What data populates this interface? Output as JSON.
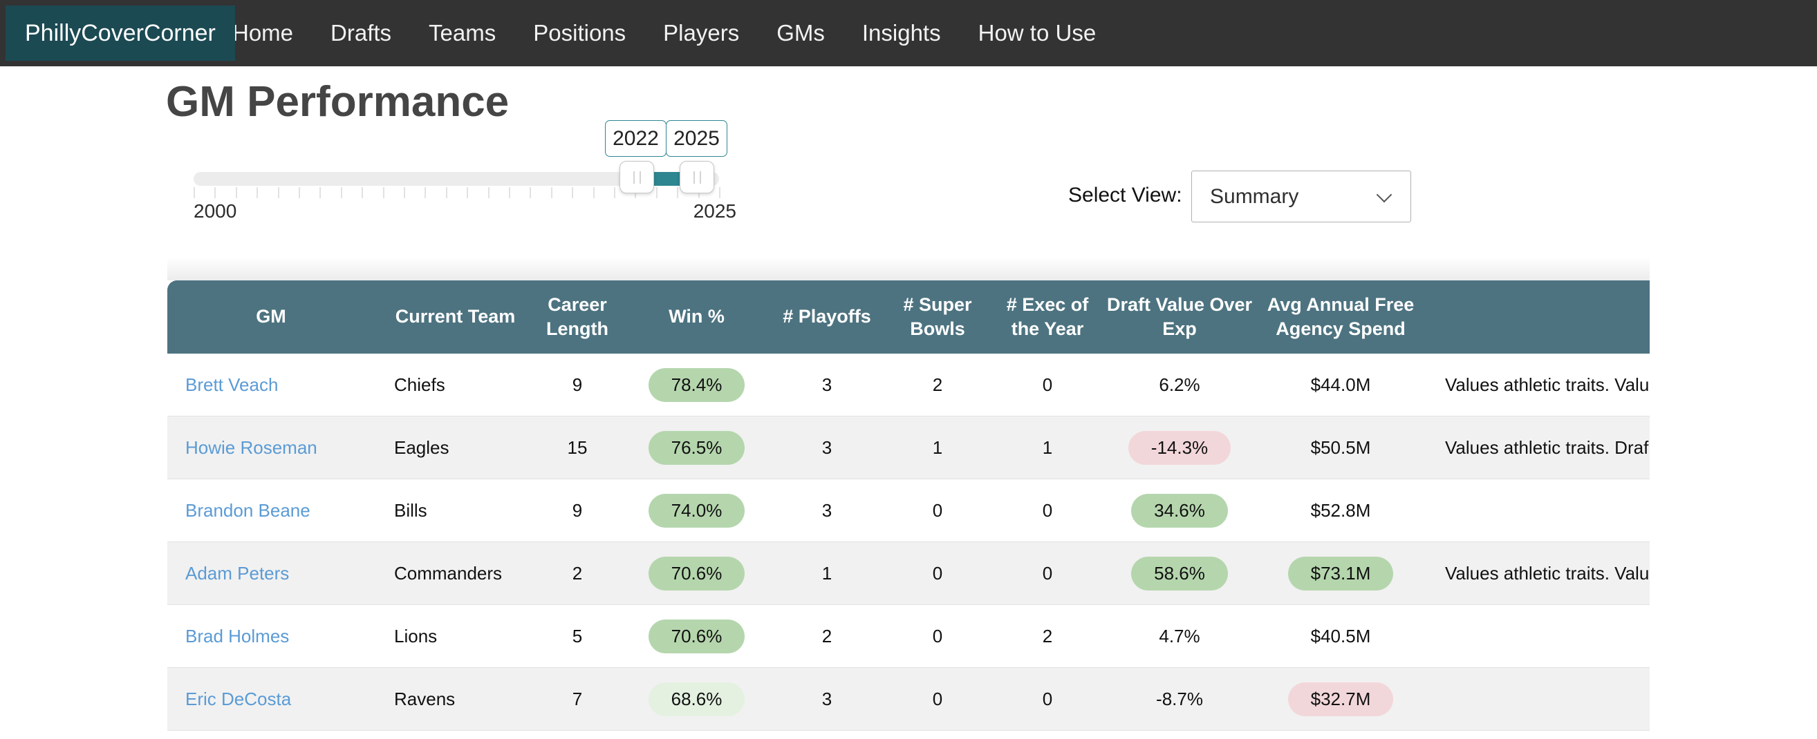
{
  "nav": {
    "brand": "PhillyCoverCorner",
    "items": [
      "Home",
      "Drafts",
      "Teams",
      "Positions",
      "Players",
      "GMs",
      "Insights",
      "How to Use"
    ]
  },
  "page": {
    "title": "GM Performance"
  },
  "slider": {
    "lower_value": "2022",
    "upper_value": "2025",
    "min_label": "2000",
    "max_label": "2025"
  },
  "view_select": {
    "label": "Select View:",
    "value": "Summary"
  },
  "table": {
    "columns": [
      "GM",
      "Current Team",
      "Career Length",
      "Win %",
      "# Playoffs",
      "# Super Bowls",
      "# Exec of the Year",
      "Draft Value Over Exp",
      "Avg Annual Free Agency Spend"
    ],
    "rows": [
      {
        "gm": "Brett Veach",
        "team": "Chiefs",
        "career_length": "9",
        "win_pct": "78.4%",
        "win_style": "green",
        "playoffs": "3",
        "super_bowls": "2",
        "exec_of_year": "0",
        "draft_value": "6.2%",
        "draft_style": "none",
        "fa_spend": "$44.0M",
        "fa_style": "none",
        "notes": "Values athletic traits. Valu"
      },
      {
        "gm": "Howie Roseman",
        "team": "Eagles",
        "career_length": "15",
        "win_pct": "76.5%",
        "win_style": "green",
        "playoffs": "3",
        "super_bowls": "1",
        "exec_of_year": "1",
        "draft_value": "-14.3%",
        "draft_style": "pink",
        "fa_spend": "$50.5M",
        "fa_style": "none",
        "notes": "Values athletic traits. Draf"
      },
      {
        "gm": "Brandon Beane",
        "team": "Bills",
        "career_length": "9",
        "win_pct": "74.0%",
        "win_style": "green",
        "playoffs": "3",
        "super_bowls": "0",
        "exec_of_year": "0",
        "draft_value": "34.6%",
        "draft_style": "green",
        "fa_spend": "$52.8M",
        "fa_style": "none",
        "notes": ""
      },
      {
        "gm": "Adam Peters",
        "team": "Commanders",
        "career_length": "2",
        "win_pct": "70.6%",
        "win_style": "green",
        "playoffs": "1",
        "super_bowls": "0",
        "exec_of_year": "0",
        "draft_value": "58.6%",
        "draft_style": "green",
        "fa_spend": "$73.1M",
        "fa_style": "green",
        "notes": "Values athletic traits. Valu"
      },
      {
        "gm": "Brad Holmes",
        "team": "Lions",
        "career_length": "5",
        "win_pct": "70.6%",
        "win_style": "green",
        "playoffs": "2",
        "super_bowls": "0",
        "exec_of_year": "2",
        "draft_value": "4.7%",
        "draft_style": "none",
        "fa_spend": "$40.5M",
        "fa_style": "none",
        "notes": ""
      },
      {
        "gm": "Eric DeCosta",
        "team": "Ravens",
        "career_length": "7",
        "win_pct": "68.6%",
        "win_style": "green_light",
        "playoffs": "3",
        "super_bowls": "0",
        "exec_of_year": "0",
        "draft_value": "-8.7%",
        "draft_style": "none",
        "fa_spend": "$32.7M",
        "fa_style": "pink",
        "notes": ""
      }
    ]
  },
  "colors": {
    "navbar_bg": "#333333",
    "brand_bg": "#1c4a53",
    "accent_teal": "#2e8690",
    "table_header_bg": "#4d7380",
    "link_blue": "#5b9bd5",
    "pill_green": "#b5d6ad",
    "pill_green_light": "#e4f1e1",
    "pill_pink": "#f2d7da",
    "row_alt_bg": "#f1f1f1"
  }
}
